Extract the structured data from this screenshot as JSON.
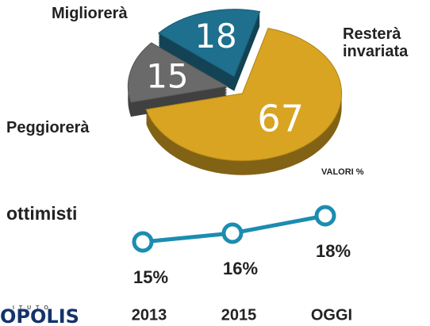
{
  "chart_data": [
    {
      "type": "pie",
      "categories": [
        "Migliorerà",
        "Peggiorerà",
        "Resterà invariata"
      ],
      "values": [
        18,
        15,
        67
      ],
      "colors": [
        "#1f6f8e",
        "#6a6a6a",
        "#d9a422"
      ],
      "annotation": "VALORI %"
    },
    {
      "type": "line",
      "title": "ottimisti",
      "categories": [
        "2013",
        "2015",
        "OGGI"
      ],
      "values": [
        15,
        16,
        18
      ],
      "value_labels": [
        "15%",
        "16%",
        "18%"
      ],
      "color": "#1b8db0"
    }
  ],
  "logo": {
    "small": "I T U T O",
    "text": "OPOLIS"
  }
}
